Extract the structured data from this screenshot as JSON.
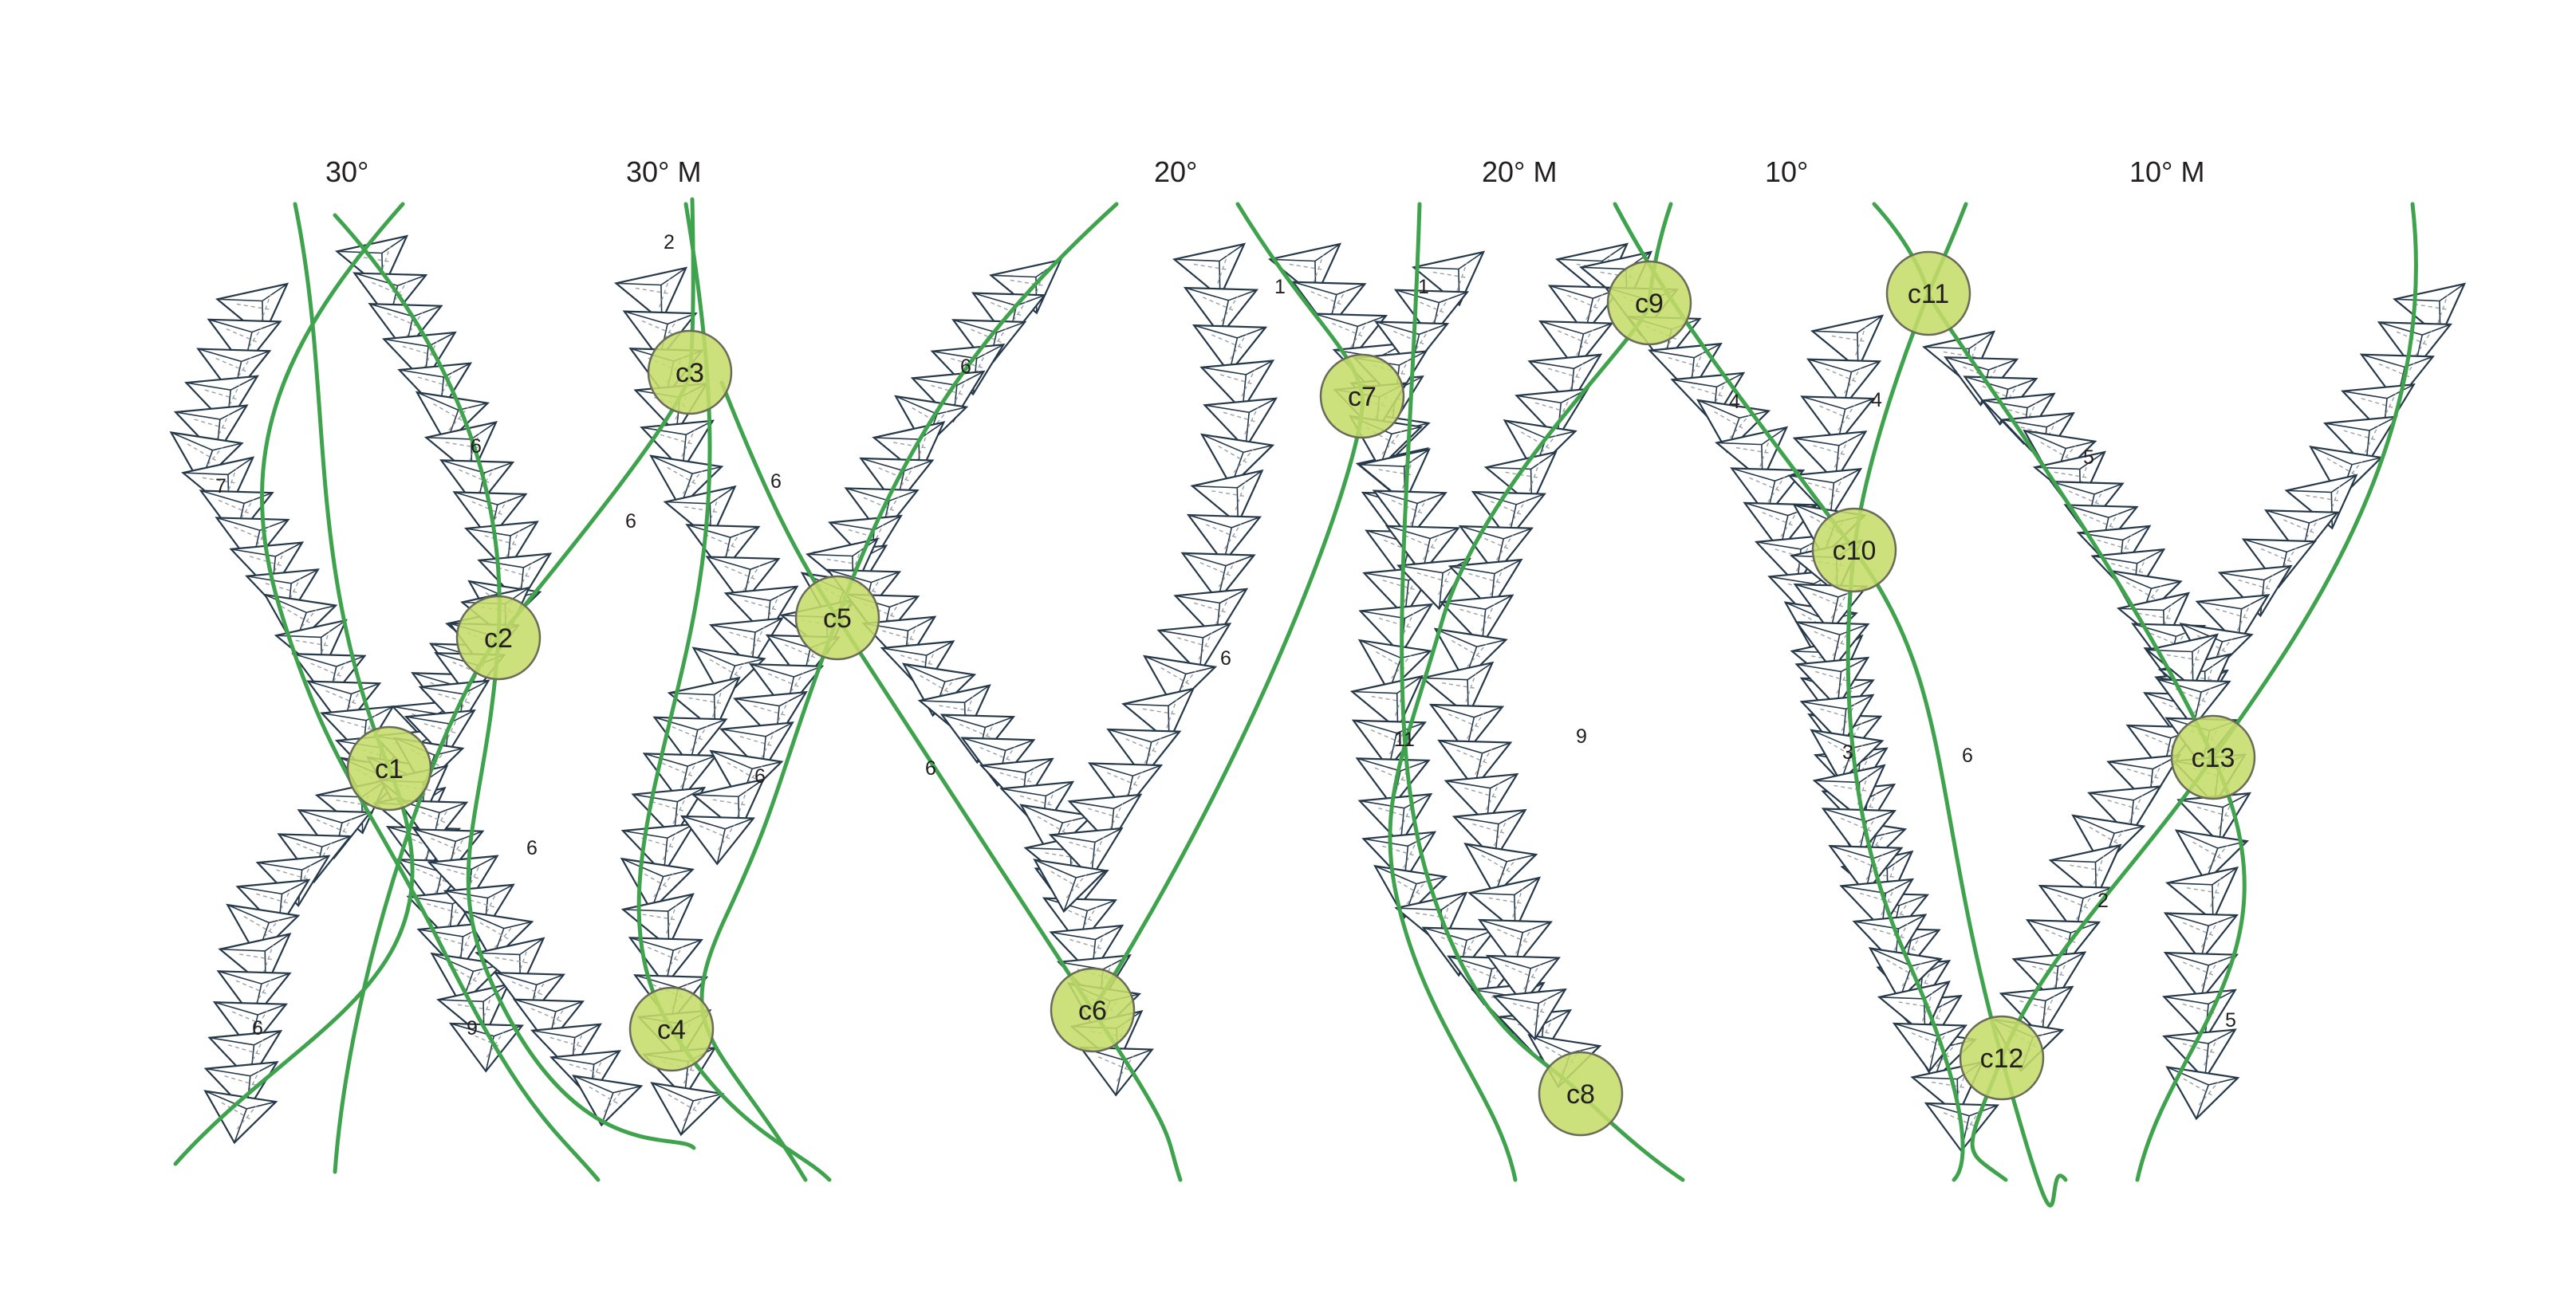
{
  "colors": {
    "curve": "#3fa34d",
    "node_fill": "#c5dc6a",
    "node_stroke": "#6b6b5a",
    "module_stroke": "#26394a",
    "hidden_edge": "#9aa0a6",
    "text": "#231f20"
  },
  "panels": [
    {
      "id": "p1",
      "headings": [
        {
          "id": "h1",
          "text": "30°"
        },
        {
          "id": "h2",
          "text": "30° M"
        }
      ],
      "nodes": [
        {
          "id": "c1",
          "label": "c1"
        },
        {
          "id": "c2",
          "label": "c2"
        },
        {
          "id": "c3",
          "label": "c3"
        },
        {
          "id": "c4",
          "label": "c4"
        }
      ],
      "counts": [
        "2",
        "6",
        "7",
        "6",
        "6",
        "6",
        "6",
        "6"
      ]
    },
    {
      "id": "p2",
      "headings": [
        {
          "id": "h3",
          "text": "20°"
        }
      ],
      "nodes": [
        {
          "id": "c5",
          "label": "c5"
        },
        {
          "id": "c6",
          "label": "c6"
        }
      ],
      "counts": [
        "6",
        "6",
        "6",
        "9"
      ]
    },
    {
      "id": "p3",
      "headings": [
        {
          "id": "h4",
          "text": "20° M"
        }
      ],
      "nodes": [
        {
          "id": "c7",
          "label": "c7"
        },
        {
          "id": "c8",
          "label": "c8"
        },
        {
          "id": "c9",
          "label": "c9"
        }
      ],
      "counts": [
        "1",
        "1",
        "11",
        "9",
        "4"
      ]
    },
    {
      "id": "p4",
      "headings": [
        {
          "id": "h5",
          "text": "10°"
        },
        {
          "id": "h6",
          "text": "10° M"
        }
      ],
      "nodes": [
        {
          "id": "c10",
          "label": "c10"
        },
        {
          "id": "c11",
          "label": "c11"
        },
        {
          "id": "c12",
          "label": "c12"
        },
        {
          "id": "c13",
          "label": "c13"
        }
      ],
      "counts": [
        "4",
        "5",
        "3",
        "6",
        "2",
        "5"
      ]
    }
  ]
}
